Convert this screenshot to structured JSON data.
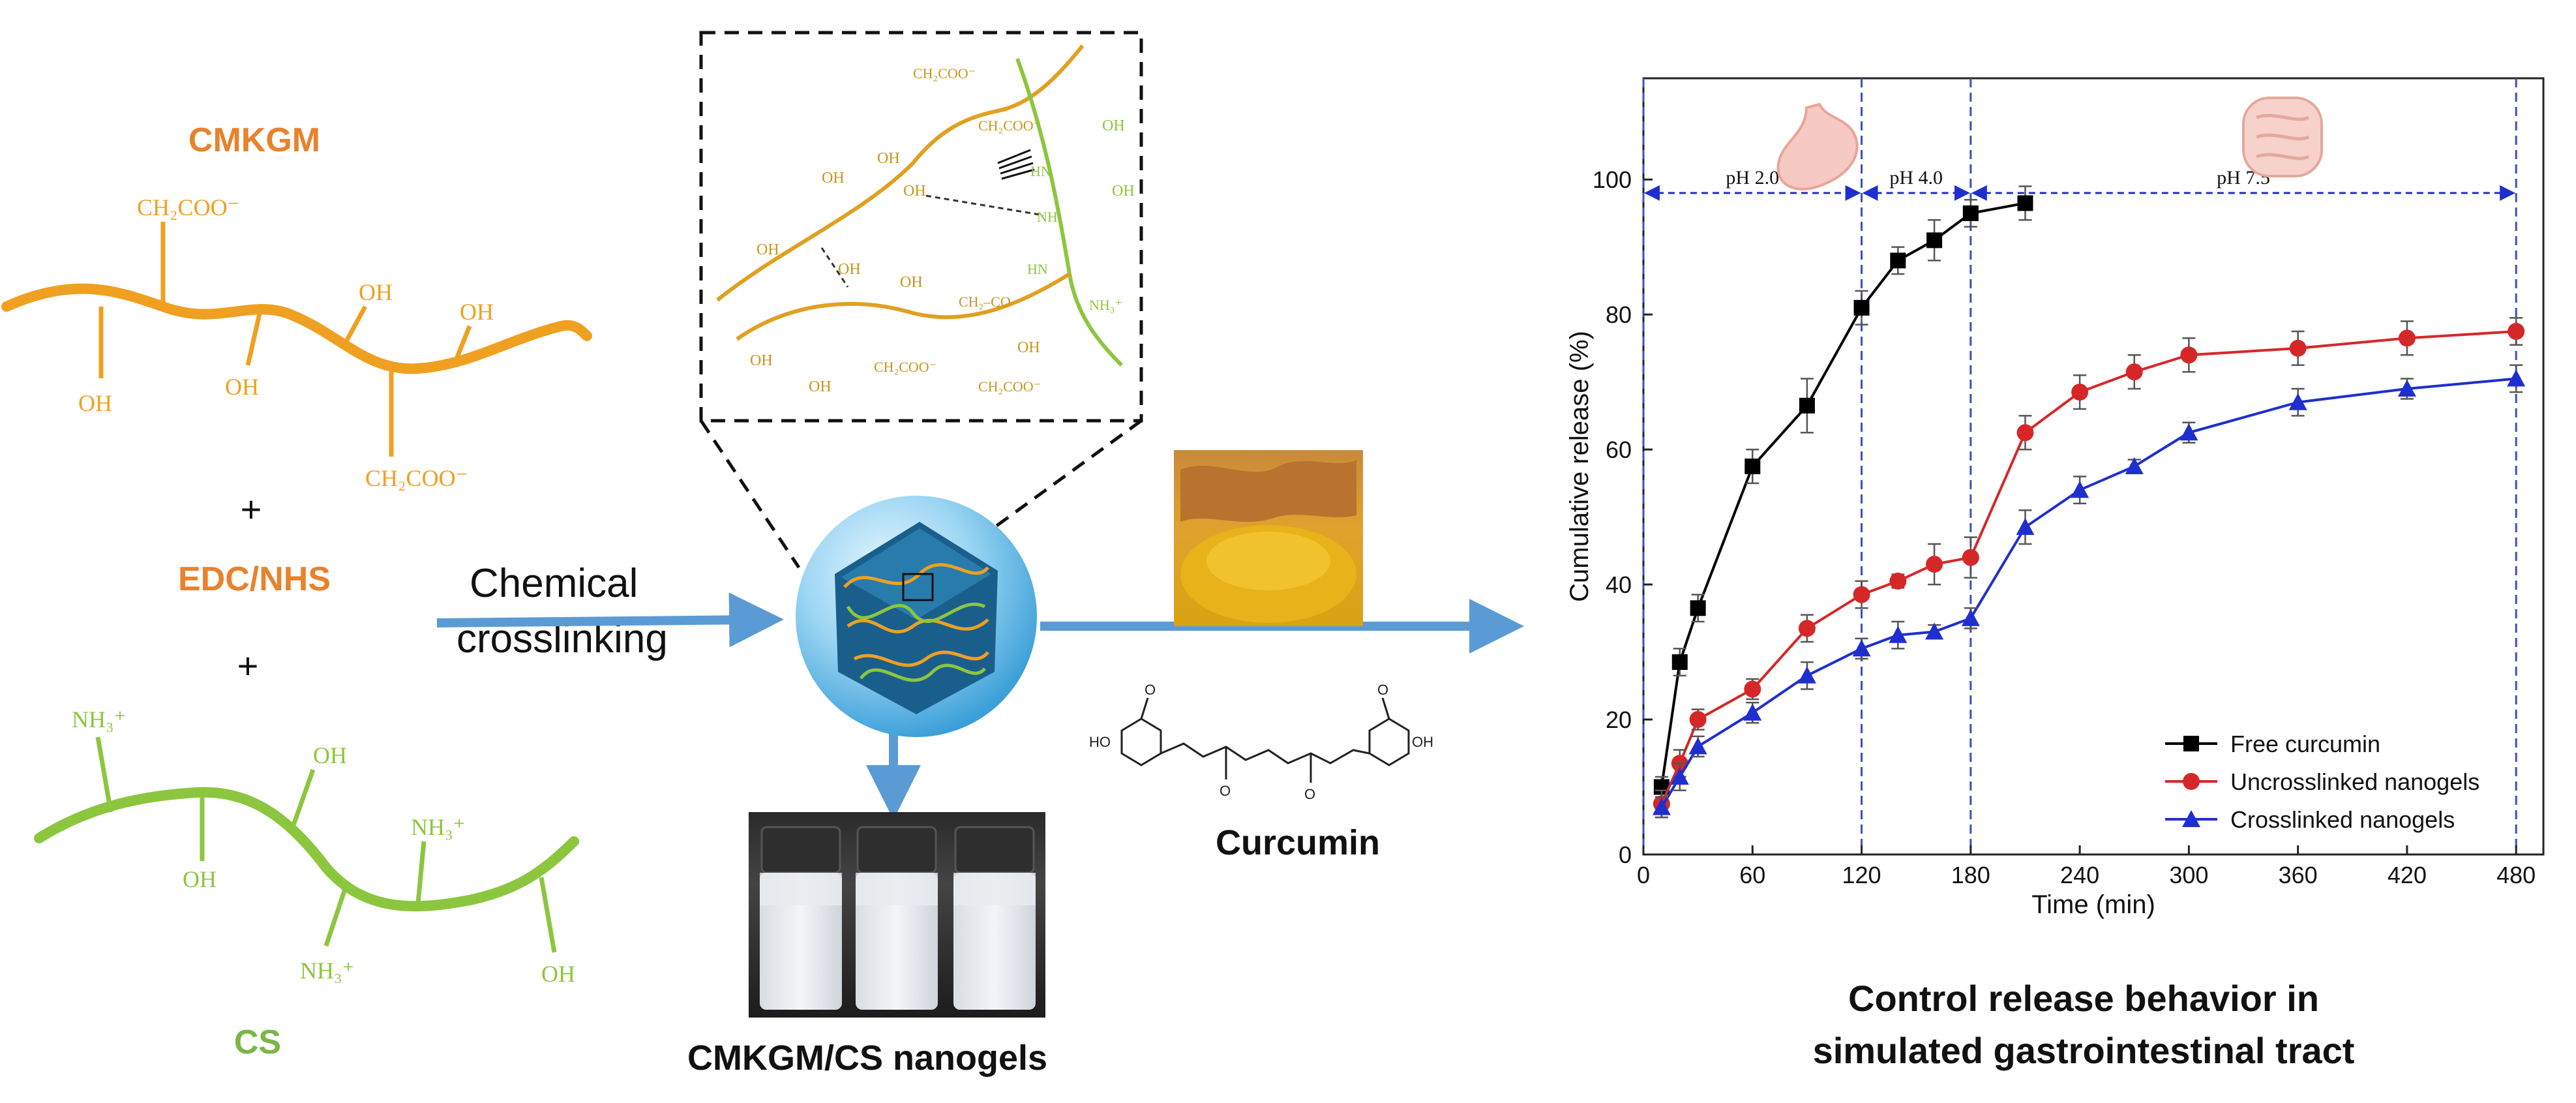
{
  "colors": {
    "cmkgm": "#f0a020",
    "cmkgm_label": "#e8822c",
    "cs": "#8cc63f",
    "cs_label": "#7ab648",
    "arrow": "#5b9bd5",
    "free": "#000000",
    "uncross": "#d62728",
    "cross": "#1f2fcf",
    "phline": "#3a4fbf"
  },
  "left": {
    "cmkgm_title": "CMKGM",
    "cmkgm_groups": [
      "CH₂COO⁻",
      "OH",
      "OH",
      "OH",
      "OH",
      "CH₂COO⁻"
    ],
    "plus1": "+",
    "edc_title": "EDC/NHS",
    "plus2": "+",
    "cs_groups": [
      "NH₃⁺",
      "OH",
      "OH",
      "NH₃⁺",
      "NH₃⁺",
      "OH"
    ],
    "cs_title": "CS"
  },
  "middle": {
    "process_line1": "Chemical",
    "process_line2": "crosslinking",
    "zoom_groups": [
      "CH₂COO⁻",
      "CH₂COO⁻",
      "OH",
      "OH",
      "OH",
      "OH",
      "OH",
      "HN",
      "NH",
      "HN",
      "NH₃⁺",
      "CH₂–CO",
      "OH",
      "OH",
      "OH",
      "CH₂COO⁻",
      "CH₂COO⁻",
      "OH",
      "OH",
      "OH"
    ],
    "nanogels_label": "CMKGM/CS nanogels",
    "curcumin_label": "Curcumin",
    "curcumin_atoms": [
      "HO",
      "O",
      "O",
      "O",
      "O",
      "OH"
    ]
  },
  "right_caption": {
    "line1": "Control release behavior in",
    "line2": "simulated gastrointestinal tract"
  },
  "chart_data": {
    "type": "line",
    "xlabel": "Time (min)",
    "ylabel": "Cumulative release (%)",
    "xlim": [
      0,
      495
    ],
    "ylim": [
      0,
      115
    ],
    "xticks": [
      0,
      60,
      120,
      180,
      240,
      300,
      360,
      420,
      480
    ],
    "yticks": [
      0,
      20,
      40,
      60,
      80,
      100
    ],
    "phase_lines": [
      0,
      120,
      180,
      480
    ],
    "phases": [
      {
        "label": "pH 2.0",
        "from": 0,
        "to": 120
      },
      {
        "label": "pH 4.0",
        "from": 120,
        "to": 180
      },
      {
        "label": "pH 7.5",
        "from": 180,
        "to": 480
      }
    ],
    "phase_arrow_y": 98,
    "legend_position": "bottom-right",
    "series": [
      {
        "name": "Free curcumin",
        "marker": "square",
        "x": [
          10,
          20,
          30,
          60,
          90,
          120,
          140,
          160,
          180,
          210
        ],
        "y": [
          10,
          28.5,
          36.5,
          57.5,
          66.5,
          81,
          88,
          91,
          95,
          96.5
        ],
        "err": [
          1.5,
          2,
          2,
          2.5,
          4,
          2.5,
          2,
          3,
          2,
          2.5
        ]
      },
      {
        "name": "Uncrosslinked nanogels",
        "marker": "circle",
        "x": [
          10,
          20,
          30,
          60,
          90,
          120,
          140,
          160,
          180,
          210,
          240,
          270,
          300,
          360,
          420,
          480
        ],
        "y": [
          7.5,
          13.5,
          20,
          24.5,
          33.5,
          38.5,
          40.5,
          43,
          44,
          62.5,
          68.5,
          71.5,
          74,
          75,
          76.5,
          77.5
        ],
        "err": [
          2,
          2,
          1.5,
          1.5,
          2,
          2,
          1,
          3,
          3,
          2.5,
          2.5,
          2.5,
          2.5,
          2.5,
          2.5,
          2
        ]
      },
      {
        "name": "Crosslinked nanogels",
        "marker": "triangle",
        "x": [
          10,
          20,
          30,
          60,
          90,
          120,
          140,
          160,
          180,
          210,
          240,
          270,
          300,
          360,
          420,
          480
        ],
        "y": [
          7,
          11.5,
          16,
          21,
          26.5,
          30.5,
          32.5,
          33,
          35,
          48.5,
          54,
          57.5,
          62.5,
          67,
          69,
          70.5
        ],
        "err": [
          1.5,
          2,
          1.5,
          1.5,
          2,
          1.5,
          2,
          1,
          1.5,
          2.5,
          2,
          1,
          1.5,
          2,
          1.5,
          2
        ]
      }
    ]
  }
}
